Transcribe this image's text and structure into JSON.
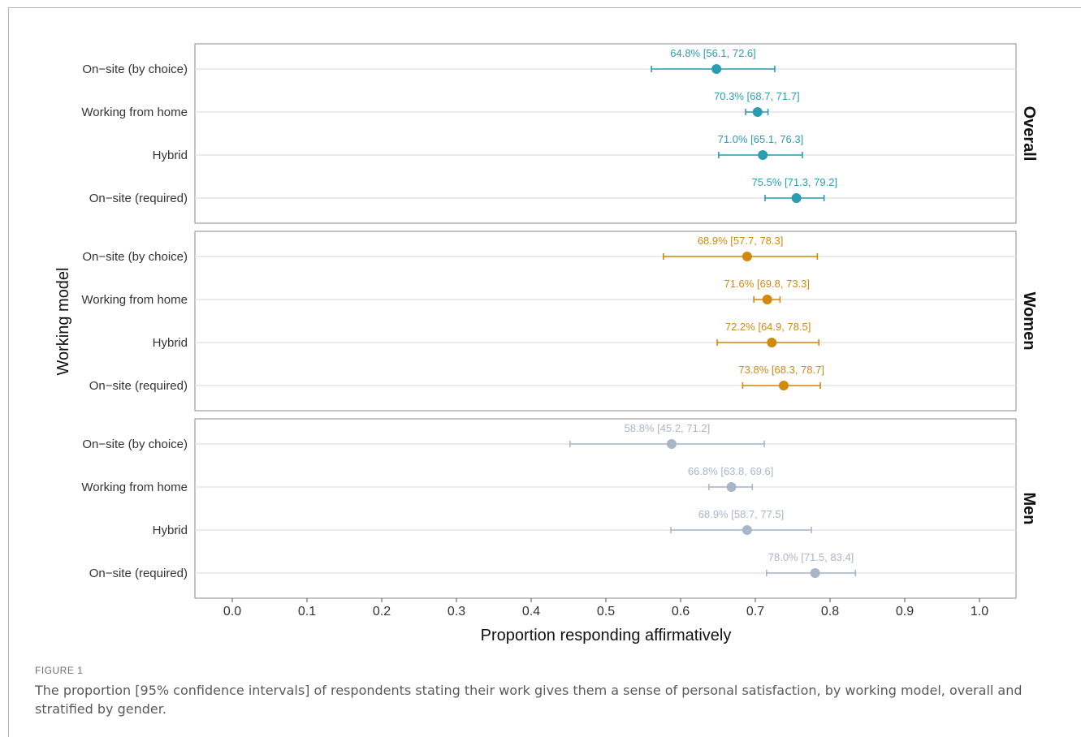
{
  "chart_data": {
    "type": "scatter",
    "subtype": "dot-with-error-bars",
    "xlabel": "Proportion responding affirmatively",
    "ylabel": "Working model",
    "xlim": [
      -0.05,
      1.05
    ],
    "x_ticks": [
      "0.0",
      "0.1",
      "0.2",
      "0.3",
      "0.4",
      "0.5",
      "0.6",
      "0.7",
      "0.8",
      "0.9",
      "1.0"
    ],
    "grid": "horizontal",
    "categories": [
      "On−site (by choice)",
      "Working from home",
      "Hybrid",
      "On−site (required)"
    ],
    "panels": [
      {
        "name": "Overall",
        "color": "#2a9db3",
        "points": [
          {
            "category": "On−site (by choice)",
            "value": 0.648,
            "low": 0.561,
            "high": 0.726,
            "label": "64.8% [56.1, 72.6]"
          },
          {
            "category": "Working from home",
            "value": 0.703,
            "low": 0.687,
            "high": 0.717,
            "label": "70.3% [68.7, 71.7]"
          },
          {
            "category": "Hybrid",
            "value": 0.71,
            "low": 0.651,
            "high": 0.763,
            "label": "71.0% [65.1, 76.3]"
          },
          {
            "category": "On−site (required)",
            "value": 0.755,
            "low": 0.713,
            "high": 0.792,
            "label": "75.5% [71.3, 79.2]"
          }
        ]
      },
      {
        "name": "Women",
        "color": "#d18a0e",
        "points": [
          {
            "category": "On−site (by choice)",
            "value": 0.689,
            "low": 0.577,
            "high": 0.783,
            "label": "68.9% [57.7, 78.3]"
          },
          {
            "category": "Working from home",
            "value": 0.716,
            "low": 0.698,
            "high": 0.733,
            "label": "71.6% [69.8, 73.3]"
          },
          {
            "category": "Hybrid",
            "value": 0.722,
            "low": 0.649,
            "high": 0.785,
            "label": "72.2% [64.9, 78.5]"
          },
          {
            "category": "On−site (required)",
            "value": 0.738,
            "low": 0.683,
            "high": 0.787,
            "label": "73.8% [68.3, 78.7]"
          }
        ]
      },
      {
        "name": "Men",
        "color": "#a9b5c9",
        "points": [
          {
            "category": "On−site (by choice)",
            "value": 0.588,
            "low": 0.452,
            "high": 0.712,
            "label": "58.8% [45.2, 71.2]"
          },
          {
            "category": "Working from home",
            "value": 0.668,
            "low": 0.638,
            "high": 0.696,
            "label": "66.8% [63.8, 69.6]"
          },
          {
            "category": "Hybrid",
            "value": 0.689,
            "low": 0.587,
            "high": 0.775,
            "label": "68.9% [58.7, 77.5]"
          },
          {
            "category": "On−site (required)",
            "value": 0.78,
            "low": 0.715,
            "high": 0.834,
            "label": "78.0% [71.5, 83.4]"
          }
        ]
      }
    ]
  },
  "caption": {
    "label": "FIGURE 1",
    "text": "The proportion [95% confidence intervals] of respondents stating their work gives them a sense of personal satisfaction, by working model, overall and stratified by gender."
  }
}
